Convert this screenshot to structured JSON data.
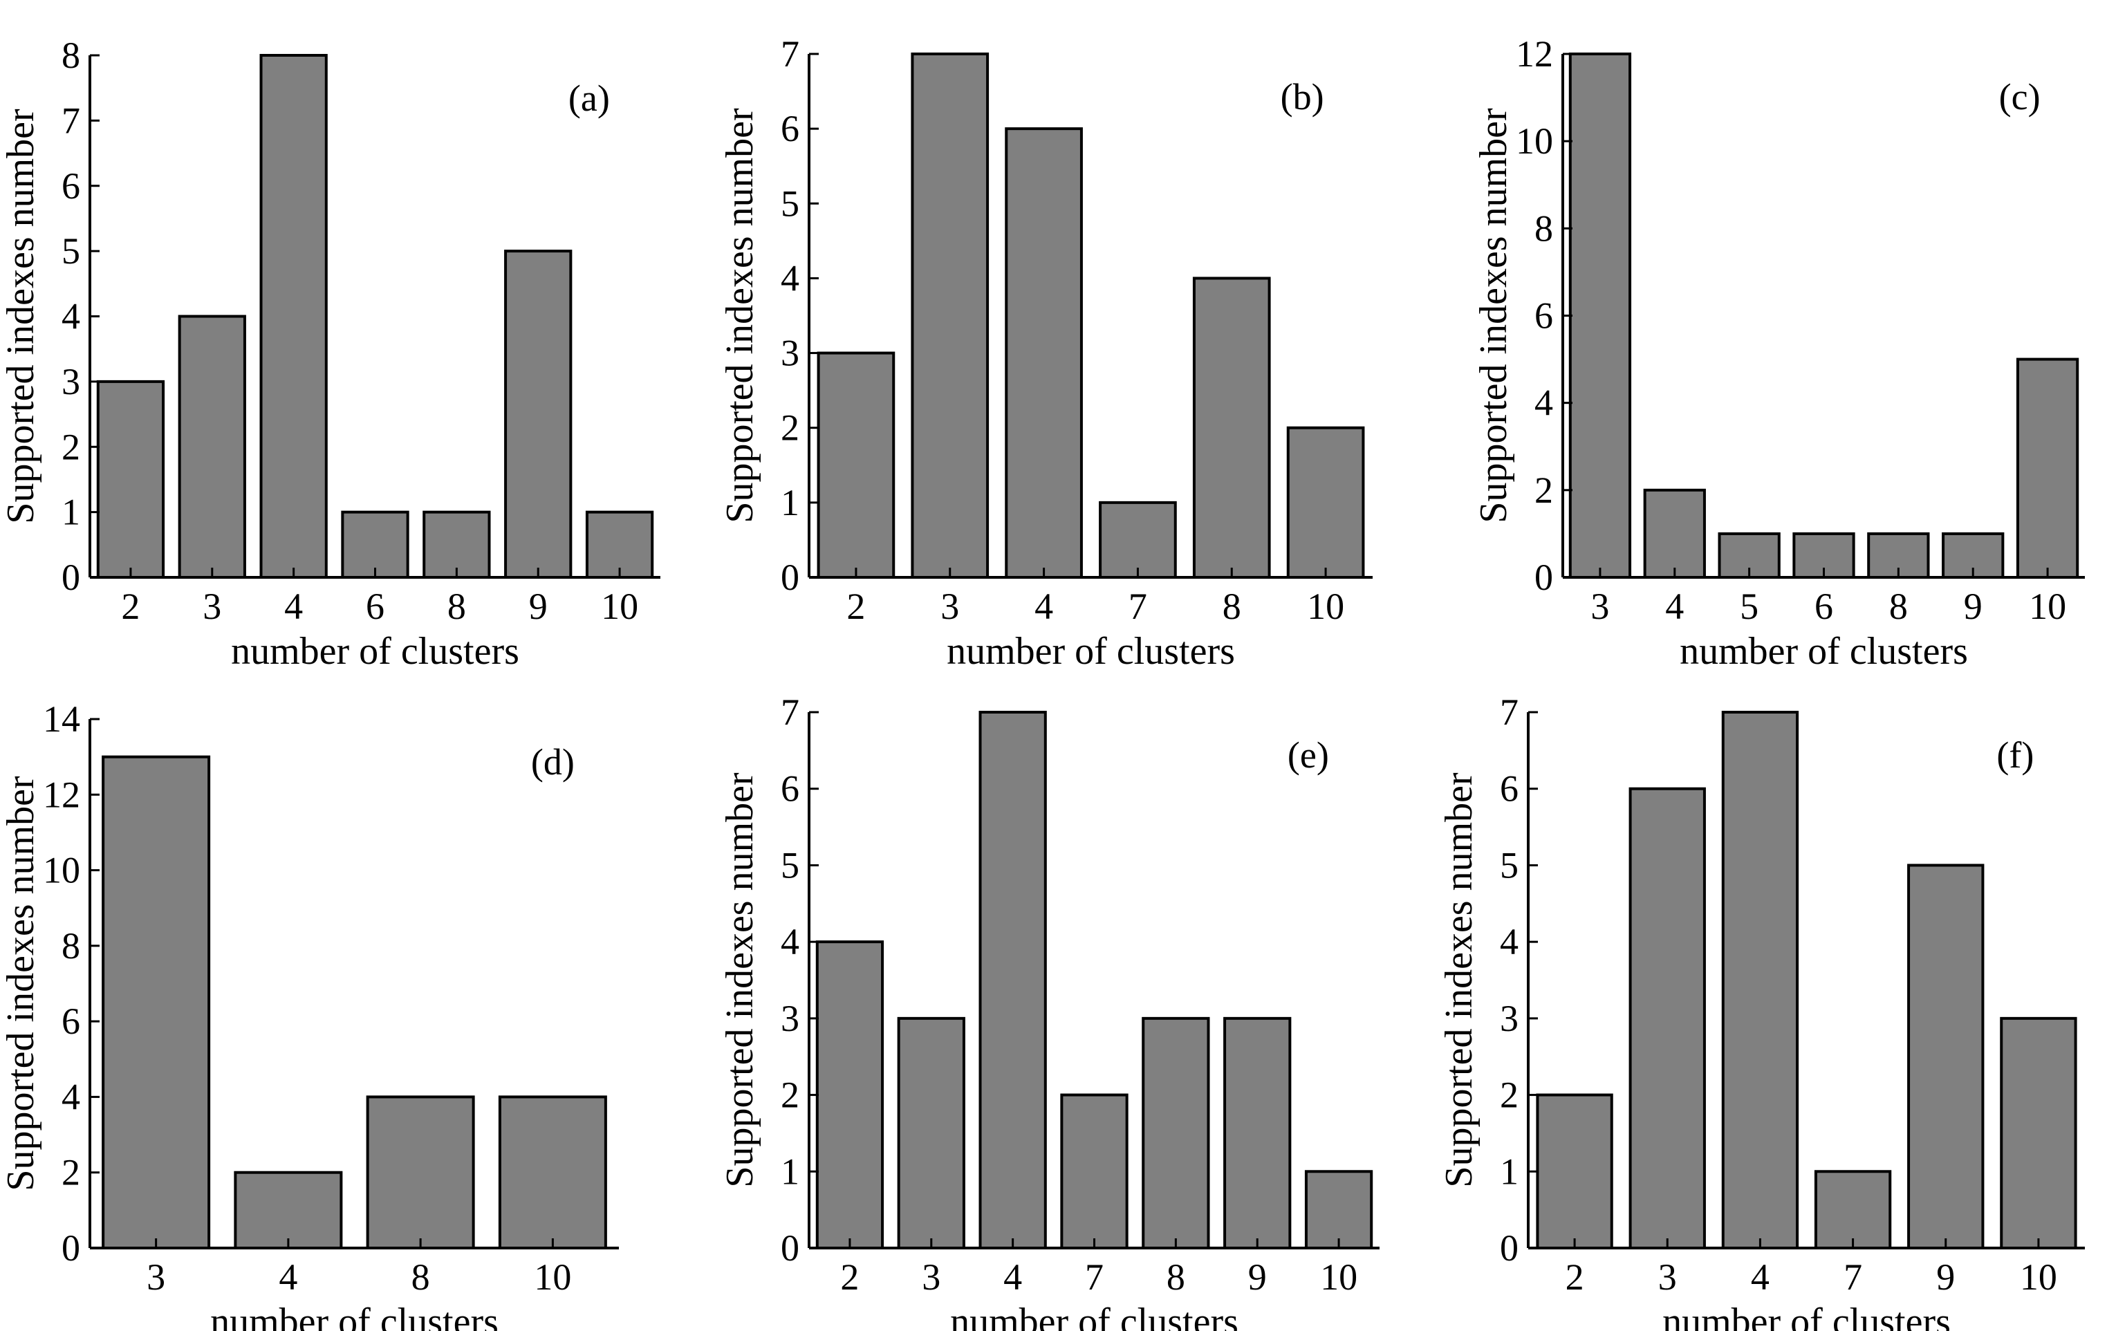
{
  "chart_data": [
    {
      "type": "bar",
      "panel_label": "(a)",
      "categories": [
        "2",
        "3",
        "4",
        "6",
        "8",
        "9",
        "10"
      ],
      "values": [
        3,
        4,
        8,
        1,
        1,
        5,
        1
      ],
      "xlabel": "number of clusters",
      "ylabel": "Supported indexes number",
      "ylim": [
        0,
        8
      ],
      "yticks": [
        "0",
        "1",
        "2",
        "3",
        "4",
        "5",
        "6",
        "7",
        "8"
      ],
      "grid": false
    },
    {
      "type": "bar",
      "panel_label": "(b)",
      "categories": [
        "2",
        "3",
        "4",
        "7",
        "8",
        "10"
      ],
      "values": [
        3,
        7,
        6,
        1,
        4,
        2
      ],
      "xlabel": "number of clusters",
      "ylabel": "Supported indexes number",
      "ylim": [
        0,
        7
      ],
      "yticks": [
        "0",
        "1",
        "2",
        "3",
        "4",
        "5",
        "6",
        "7"
      ],
      "grid": false
    },
    {
      "type": "bar",
      "panel_label": "(c)",
      "categories": [
        "3",
        "4",
        "5",
        "6",
        "8",
        "9",
        "10"
      ],
      "values": [
        12,
        2,
        1,
        1,
        1,
        1,
        5
      ],
      "xlabel": "number of clusters",
      "ylabel": "Supported indexes number",
      "ylim": [
        0,
        12
      ],
      "yticks": [
        "0",
        "2",
        "4",
        "6",
        "8",
        "10",
        "12"
      ],
      "grid": false
    },
    {
      "type": "bar",
      "panel_label": "(d)",
      "categories": [
        "3",
        "4",
        "8",
        "10"
      ],
      "values": [
        13,
        2,
        4,
        4
      ],
      "xlabel": "number of clusters",
      "ylabel": "Supported indexes number",
      "ylim": [
        0,
        14
      ],
      "yticks": [
        "0",
        "2",
        "4",
        "6",
        "8",
        "10",
        "12",
        "14"
      ],
      "grid": false
    },
    {
      "type": "bar",
      "panel_label": "(e)",
      "categories": [
        "2",
        "3",
        "4",
        "7",
        "8",
        "9",
        "10"
      ],
      "values": [
        4,
        3,
        7,
        2,
        3,
        3,
        1
      ],
      "xlabel": "number of clusters",
      "ylabel": "Supported indexes number",
      "ylim": [
        0,
        7
      ],
      "yticks": [
        "0",
        "1",
        "2",
        "3",
        "4",
        "5",
        "6",
        "7"
      ],
      "grid": false
    },
    {
      "type": "bar",
      "panel_label": "(f)",
      "categories": [
        "2",
        "3",
        "4",
        "7",
        "9",
        "10"
      ],
      "values": [
        2,
        6,
        7,
        1,
        5,
        3
      ],
      "xlabel": "number of clusters",
      "ylabel": "Supported indexes number",
      "ylim": [
        0,
        7
      ],
      "yticks": [
        "0",
        "1",
        "2",
        "3",
        "4",
        "5",
        "6",
        "7"
      ],
      "grid": false
    }
  ]
}
